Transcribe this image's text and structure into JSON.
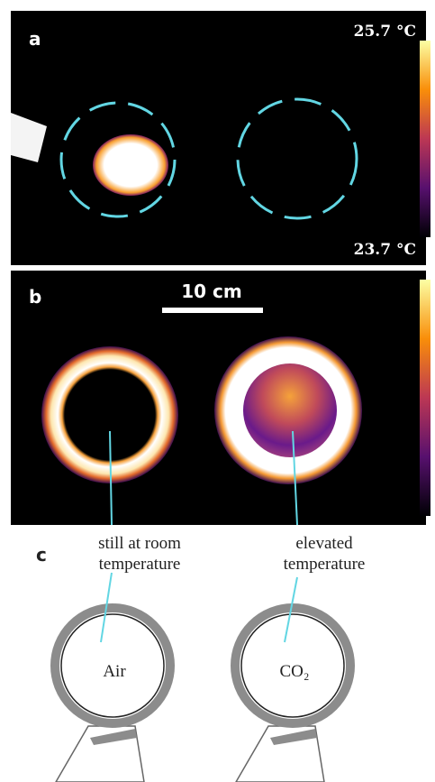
{
  "panel_a": {
    "label": "a",
    "scale_max": "25.7 °C",
    "scale_min": "23.7 °C"
  },
  "panel_b": {
    "label": "b",
    "scale_bar": "10 cm"
  },
  "panel_c": {
    "label": "c",
    "left": {
      "annotation_lines": [
        "still at room",
        "temperature"
      ],
      "gas": "Air"
    },
    "right": {
      "annotation_lines": [
        "elevated",
        "temperature"
      ],
      "gas": "CO₂"
    }
  }
}
